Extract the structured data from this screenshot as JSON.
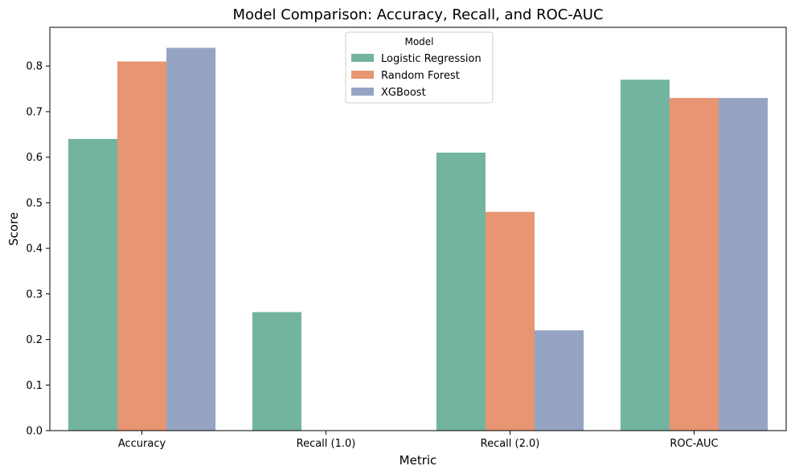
{
  "chart_data": {
    "type": "bar",
    "title": "Model Comparison: Accuracy, Recall, and ROC-AUC",
    "xlabel": "Metric",
    "ylabel": "Score",
    "categories": [
      "Accuracy",
      "Recall (1.0)",
      "Recall (2.0)",
      "ROC-AUC"
    ],
    "series": [
      {
        "name": "Logistic Regression",
        "color": "#72b49f",
        "values": [
          0.64,
          0.26,
          0.61,
          0.77
        ]
      },
      {
        "name": "Random Forest",
        "color": "#e79573",
        "values": [
          0.81,
          0.0,
          0.48,
          0.73
        ]
      },
      {
        "name": "XGBoost",
        "color": "#95a4c3",
        "values": [
          0.84,
          0.0,
          0.22,
          0.73
        ]
      }
    ],
    "ylim": [
      0,
      0.885
    ],
    "yticks": [
      "0.0",
      "0.1",
      "0.2",
      "0.3",
      "0.4",
      "0.5",
      "0.6",
      "0.7",
      "0.8"
    ],
    "legend": {
      "title": "Model",
      "placement": "upper-center"
    },
    "grid": false
  }
}
